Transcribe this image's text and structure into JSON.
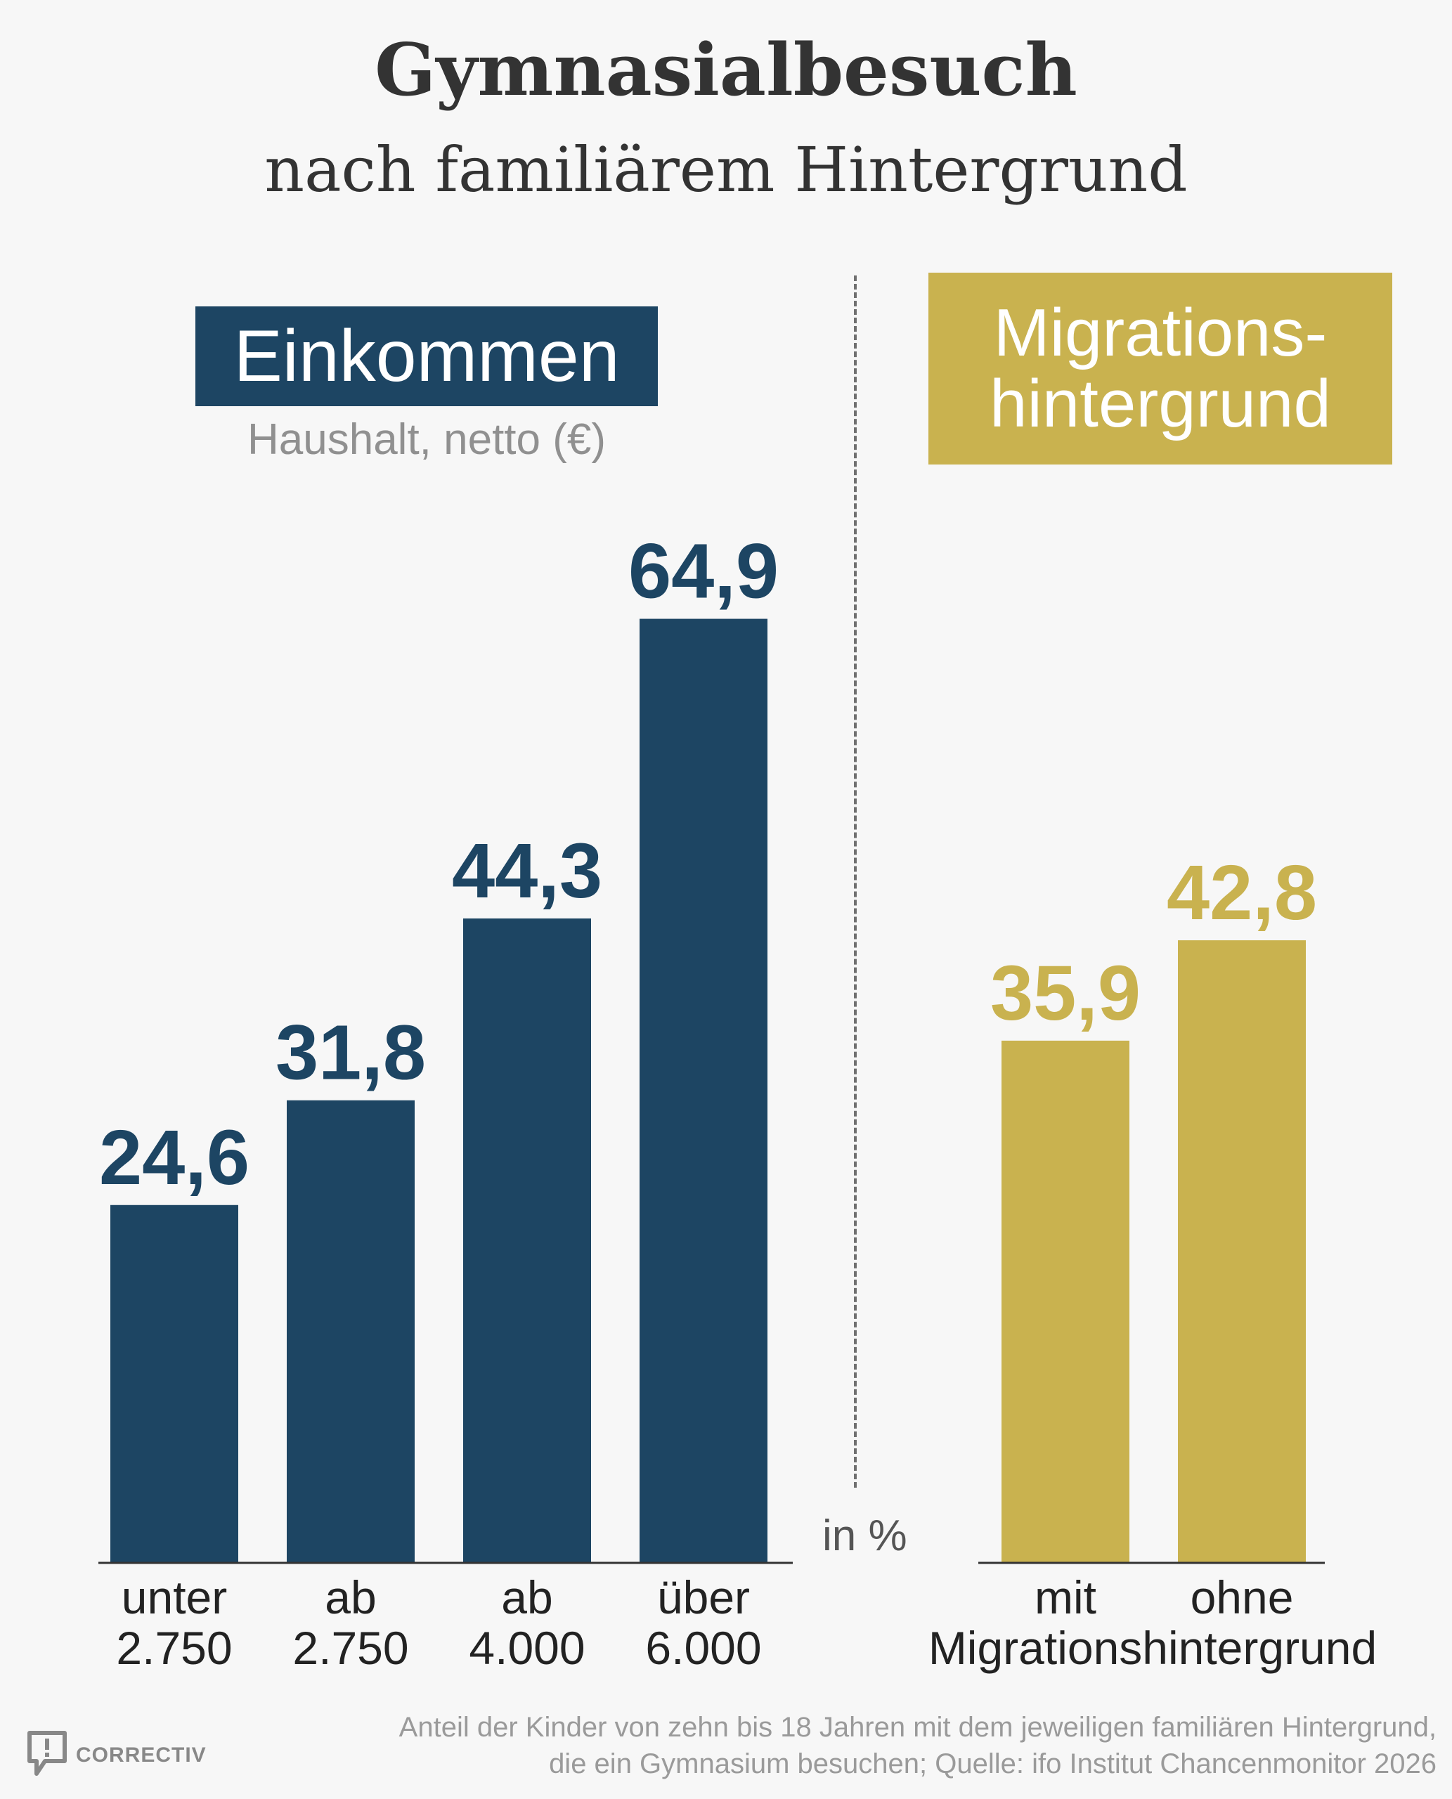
{
  "title": "Gymnasialbesuch",
  "subtitle": "nach familiärem Hintergrund",
  "unit_label": "in %",
  "colors": {
    "income": "#1d4563",
    "migration": "#c9b24f",
    "text": "#333333",
    "muted": "#909090"
  },
  "income_panel": {
    "heading": "Einkommen",
    "subheading": "Haushalt, netto (€)"
  },
  "migration_panel": {
    "heading_line1": "Migrations-",
    "heading_line2": "hintergrund",
    "axis_caption": "Migrationshintergrund"
  },
  "footnote": {
    "line1": "Anteil der Kinder von zehn bis 18 Jahren mit dem jeweiligen familiären Hintergrund,",
    "line2": "die ein Gymnasium besuchen; Quelle: ifo Institut Chancenmonitor 2026"
  },
  "logo": {
    "text": "CORRECTIV",
    "icon": "speech-bubble-exclamation-icon"
  },
  "chart_data": [
    {
      "type": "bar",
      "title": "Einkommen",
      "subtitle": "Haushalt, netto (€)",
      "unit": "%",
      "categories": [
        {
          "line1": "unter",
          "line2": "2.750"
        },
        {
          "line1": "ab",
          "line2": "2.750"
        },
        {
          "line1": "ab",
          "line2": "4.000"
        },
        {
          "line1": "über",
          "line2": "6.000"
        }
      ],
      "values": [
        24.6,
        31.8,
        44.3,
        64.9
      ],
      "value_labels": [
        "24,6",
        "31,8",
        "44,3",
        "64,9"
      ],
      "ylim": [
        0,
        70
      ],
      "grid": false
    },
    {
      "type": "bar",
      "title": "Migrationshintergrund",
      "unit": "%",
      "categories": [
        {
          "line1": "mit"
        },
        {
          "line1": "ohne"
        }
      ],
      "values": [
        35.9,
        42.8
      ],
      "value_labels": [
        "35,9",
        "42,8"
      ],
      "ylim": [
        0,
        70
      ],
      "grid": false
    }
  ]
}
